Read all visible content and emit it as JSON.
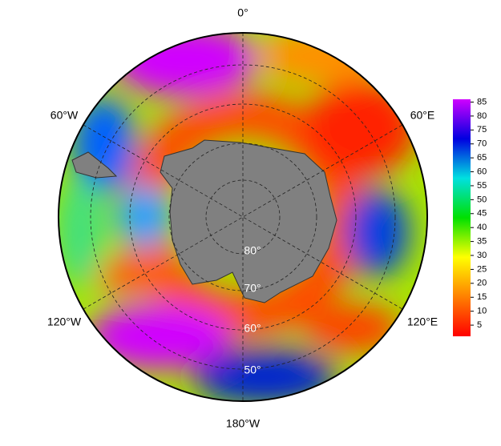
{
  "map": {
    "longitude_labels": [
      "0°",
      "60°E",
      "120°E",
      "180°W",
      "120°W",
      "60°W"
    ],
    "latitude_labels": [
      "80°",
      "70°",
      "60°",
      "50°"
    ]
  },
  "colorbar": {
    "range": [
      1,
      86
    ],
    "ticks": [
      5,
      10,
      15,
      20,
      25,
      30,
      35,
      40,
      45,
      50,
      55,
      60,
      65,
      70,
      75,
      80,
      85
    ],
    "colors": [
      "#ff0000",
      "#ff8000",
      "#ffff00",
      "#00e000",
      "#00e0e0",
      "#0000e0",
      "#d000ff"
    ]
  }
}
